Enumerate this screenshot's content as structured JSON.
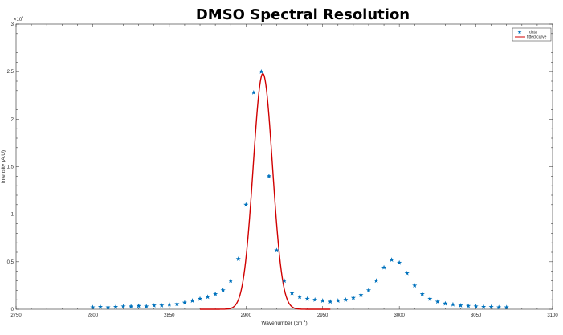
{
  "chart_data": {
    "type": "scatter",
    "title": "DMSO Spectral Resolution",
    "xlabel_main": "Wavenumber (cm",
    "xlabel_sup": "-1",
    "xlabel_tail": ")",
    "ylabel": "Intensity (A.U)",
    "y_exponent_label": "×10",
    "y_exponent_sup": "4",
    "xlim": [
      2750,
      3100
    ],
    "ylim": [
      0,
      3
    ],
    "xticks": [
      2750,
      2800,
      2850,
      2900,
      2950,
      3000,
      3050,
      3100
    ],
    "yticks": [
      0,
      0.5,
      1,
      1.5,
      2,
      2.5,
      3
    ],
    "xtick_labels": [
      "2750",
      "2800",
      "2850",
      "2900",
      "2950",
      "3000",
      "3050",
      "3100"
    ],
    "ytick_labels": [
      "0",
      "0.5",
      "1",
      "1.5",
      "2",
      "2.5",
      "3"
    ],
    "grid": false,
    "legend_position": "top-right",
    "series": [
      {
        "name": "data",
        "type": "scatter",
        "marker": "star",
        "color": "#0072BD",
        "x": [
          2800,
          2805,
          2810,
          2815,
          2820,
          2825,
          2830,
          2835,
          2840,
          2845,
          2850,
          2855,
          2860,
          2865,
          2870,
          2875,
          2880,
          2885,
          2890,
          2895,
          2900,
          2905,
          2910,
          2915,
          2920,
          2925,
          2930,
          2935,
          2940,
          2945,
          2950,
          2955,
          2960,
          2965,
          2970,
          2975,
          2980,
          2985,
          2990,
          2995,
          3000,
          3005,
          3010,
          3015,
          3020,
          3025,
          3030,
          3035,
          3040,
          3045,
          3050,
          3055,
          3060,
          3065,
          3070
        ],
        "y": [
          0.02,
          0.025,
          0.02,
          0.025,
          0.03,
          0.03,
          0.035,
          0.03,
          0.04,
          0.04,
          0.05,
          0.055,
          0.07,
          0.09,
          0.11,
          0.13,
          0.16,
          0.2,
          0.3,
          0.53,
          1.1,
          2.28,
          2.5,
          1.4,
          0.62,
          0.3,
          0.17,
          0.13,
          0.11,
          0.1,
          0.09,
          0.08,
          0.09,
          0.1,
          0.12,
          0.15,
          0.2,
          0.3,
          0.44,
          0.52,
          0.49,
          0.38,
          0.25,
          0.16,
          0.11,
          0.08,
          0.06,
          0.05,
          0.04,
          0.035,
          0.03,
          0.025,
          0.025,
          0.02,
          0.02
        ]
      },
      {
        "name": "fitted curve",
        "type": "line",
        "color": "#D00000",
        "function": "gaussian",
        "amplitude": 2.48,
        "center": 2911,
        "sigma": 6.3,
        "x_range": [
          2870,
          2955
        ]
      }
    ]
  }
}
